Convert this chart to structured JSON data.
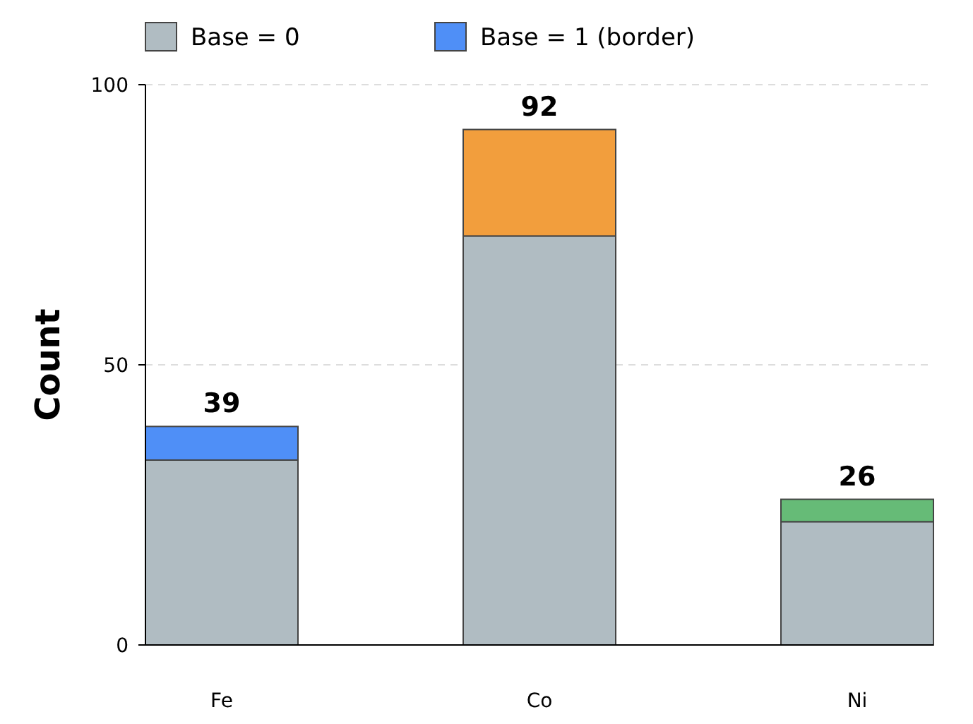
{
  "chart_data": {
    "type": "bar",
    "ylabel": "Count",
    "categories": [
      "Fe",
      "Co",
      "Ni"
    ],
    "stacked": true,
    "ylim": [
      0,
      100
    ],
    "yticks": [
      0,
      50,
      100
    ],
    "grid": "y",
    "legend": "top left",
    "totals": [
      "39",
      "92",
      "26"
    ],
    "series": [
      {
        "name": "Base = 0",
        "color": "#b0bcc2",
        "values": [
          33,
          73,
          22
        ]
      },
      {
        "name": "Base = 1 (border)",
        "color": "#4f8ff7",
        "colors": [
          "#4f8ff7",
          "#f29e3d",
          "#66bb77"
        ],
        "values": [
          6,
          19,
          4
        ]
      }
    ]
  }
}
